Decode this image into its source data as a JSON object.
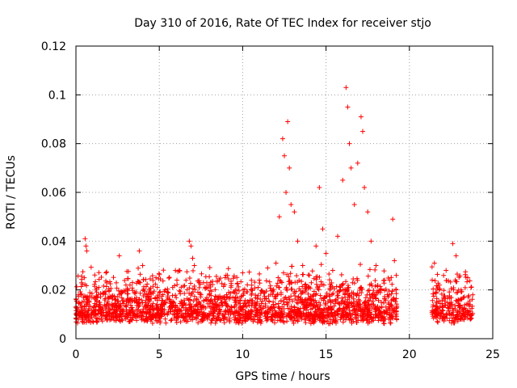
{
  "chart_data": {
    "type": "scatter",
    "title": "Day 310 of 2016, Rate Of TEC Index for receiver stjo",
    "xlabel": "GPS time / hours",
    "ylabel": "ROTI / TECUs",
    "xlim": [
      0,
      25
    ],
    "ylim": [
      0,
      0.12
    ],
    "xticks": [
      0,
      5,
      10,
      15,
      20,
      25
    ],
    "xtick_labels": [
      "0",
      "5",
      "10",
      "15",
      "20",
      "25"
    ],
    "yticks": [
      0,
      0.02,
      0.04,
      0.06,
      0.08,
      0.1,
      0.12
    ],
    "ytick_labels": [
      "0",
      "0.02",
      "0.04",
      "0.06",
      "0.08",
      "0.1",
      "0.12"
    ],
    "grid": true,
    "marker": "+",
    "color": "#ff0000",
    "series": [
      {
        "name": "ROTI",
        "data_gap_hours": [
          19.3,
          21.3
        ],
        "points": [
          [
            0.1,
            0.012
          ],
          [
            0.3,
            0.018
          ],
          [
            0.5,
            0.025
          ],
          [
            0.55,
            0.041
          ],
          [
            0.6,
            0.038
          ],
          [
            0.65,
            0.036
          ],
          [
            0.8,
            0.015
          ],
          [
            1.2,
            0.02
          ],
          [
            1.5,
            0.011
          ],
          [
            1.8,
            0.027
          ],
          [
            2.2,
            0.017
          ],
          [
            2.6,
            0.034
          ],
          [
            3.0,
            0.022
          ],
          [
            3.5,
            0.019
          ],
          [
            3.8,
            0.036
          ],
          [
            4.0,
            0.03
          ],
          [
            4.4,
            0.016
          ],
          [
            4.8,
            0.025
          ],
          [
            5.2,
            0.014
          ],
          [
            5.8,
            0.021
          ],
          [
            6.2,
            0.028
          ],
          [
            6.6,
            0.024
          ],
          [
            6.8,
            0.04
          ],
          [
            6.9,
            0.038
          ],
          [
            7.0,
            0.033
          ],
          [
            7.1,
            0.03
          ],
          [
            7.5,
            0.018
          ],
          [
            8.0,
            0.022
          ],
          [
            8.5,
            0.016
          ],
          [
            9.0,
            0.026
          ],
          [
            9.5,
            0.019
          ],
          [
            10.0,
            0.027
          ],
          [
            10.5,
            0.02
          ],
          [
            11.0,
            0.024
          ],
          [
            11.5,
            0.029
          ],
          [
            12.0,
            0.031
          ],
          [
            12.2,
            0.05
          ],
          [
            12.4,
            0.082
          ],
          [
            12.5,
            0.075
          ],
          [
            12.6,
            0.06
          ],
          [
            12.7,
            0.089
          ],
          [
            12.8,
            0.07
          ],
          [
            12.9,
            0.055
          ],
          [
            13.1,
            0.052
          ],
          [
            13.3,
            0.04
          ],
          [
            13.6,
            0.03
          ],
          [
            14.0,
            0.026
          ],
          [
            14.4,
            0.038
          ],
          [
            14.6,
            0.062
          ],
          [
            14.8,
            0.045
          ],
          [
            15.0,
            0.035
          ],
          [
            15.4,
            0.028
          ],
          [
            15.7,
            0.042
          ],
          [
            16.0,
            0.065
          ],
          [
            16.2,
            0.103
          ],
          [
            16.3,
            0.095
          ],
          [
            16.4,
            0.08
          ],
          [
            16.5,
            0.07
          ],
          [
            16.7,
            0.055
          ],
          [
            16.9,
            0.072
          ],
          [
            17.1,
            0.091
          ],
          [
            17.2,
            0.085
          ],
          [
            17.3,
            0.062
          ],
          [
            17.5,
            0.052
          ],
          [
            17.7,
            0.04
          ],
          [
            18.0,
            0.03
          ],
          [
            18.5,
            0.024
          ],
          [
            19.0,
            0.049
          ],
          [
            19.1,
            0.032
          ],
          [
            19.2,
            0.02
          ],
          [
            21.5,
            0.031
          ],
          [
            21.8,
            0.022
          ],
          [
            22.2,
            0.028
          ],
          [
            22.6,
            0.039
          ],
          [
            22.8,
            0.034
          ],
          [
            23.1,
            0.02
          ],
          [
            23.5,
            0.025
          ],
          [
            23.8,
            0.018
          ]
        ]
      }
    ]
  }
}
